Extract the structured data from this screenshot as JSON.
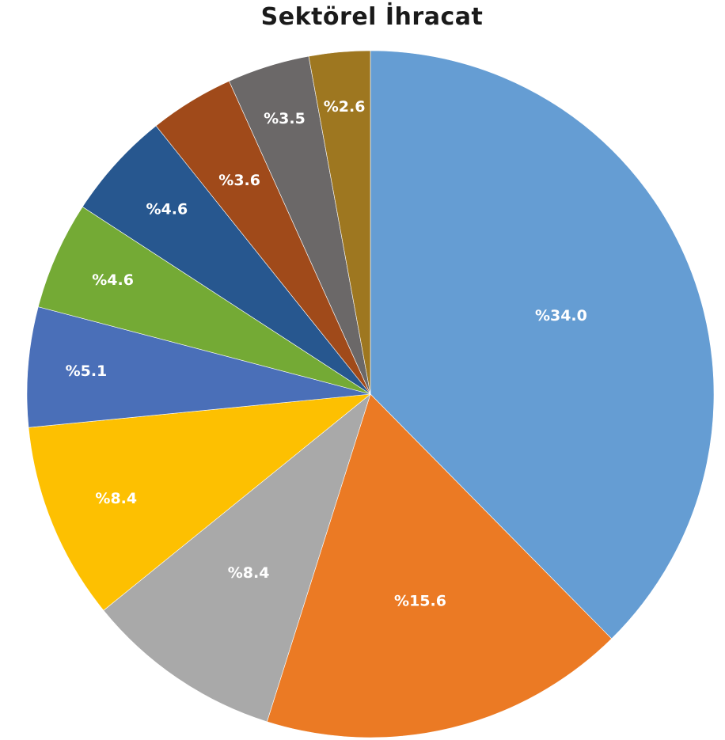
{
  "chart_data": {
    "type": "pie",
    "title": "Sektörel İhracat",
    "start_angle_deg": 0,
    "direction": "clockwise",
    "legend": "none",
    "slices": [
      {
        "label": "%34.0",
        "value": 34.0,
        "color": "#659DD3"
      },
      {
        "label": "%15.6",
        "value": 15.6,
        "color": "#EB7A24"
      },
      {
        "label": "%8.4",
        "value": 8.4,
        "color": "#A9A9A9"
      },
      {
        "label": "%8.4",
        "value": 8.4,
        "color": "#FDC001"
      },
      {
        "label": "%5.1",
        "value": 5.1,
        "color": "#4A6FB8"
      },
      {
        "label": "%4.6",
        "value": 4.6,
        "color": "#74AA35"
      },
      {
        "label": "%4.6",
        "value": 4.6,
        "color": "#27578F"
      },
      {
        "label": "%3.6",
        "value": 3.6,
        "color": "#A04A1A"
      },
      {
        "label": "%3.5",
        "value": 3.5,
        "color": "#6B6868"
      },
      {
        "label": "%2.6",
        "value": 2.6,
        "color": "#9E7720"
      }
    ]
  }
}
